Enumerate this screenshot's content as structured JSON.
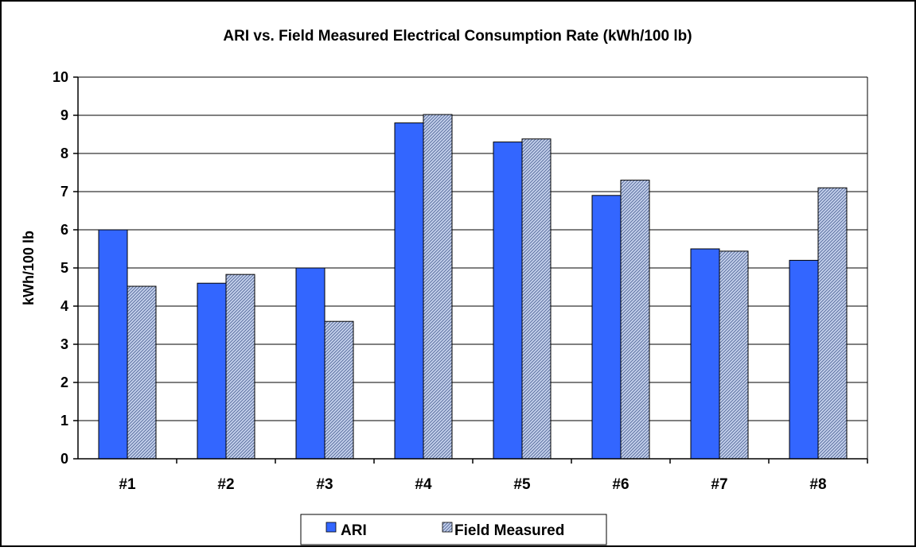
{
  "colors": {
    "ari": "#3366ff",
    "field_measured_base": "#c8d4ee",
    "field_measured_hatch": "#5a6f9f",
    "gridline": "#000000",
    "plot_background": "#ffffff"
  },
  "chart_data": {
    "type": "bar",
    "title": "ARI vs. Field Measured Electrical Consumption Rate (kWh/100 lb)",
    "xlabel": "",
    "ylabel": "kWh/100 lb",
    "ylim": [
      0,
      10
    ],
    "yticks": [
      "0",
      "1",
      "2",
      "3",
      "4",
      "5",
      "6",
      "7",
      "8",
      "9",
      "10"
    ],
    "grid": true,
    "legend_position": "bottom",
    "categories": [
      "#1",
      "#2",
      "#3",
      "#4",
      "#5",
      "#6",
      "#7",
      "#8"
    ],
    "series": [
      {
        "name": "ARI",
        "values": [
          6.0,
          4.6,
          5.0,
          8.8,
          8.3,
          6.9,
          5.5,
          5.2
        ]
      },
      {
        "name": "Field Measured",
        "values": [
          4.52,
          4.83,
          3.6,
          9.02,
          8.38,
          7.3,
          5.44,
          7.1
        ]
      }
    ]
  }
}
